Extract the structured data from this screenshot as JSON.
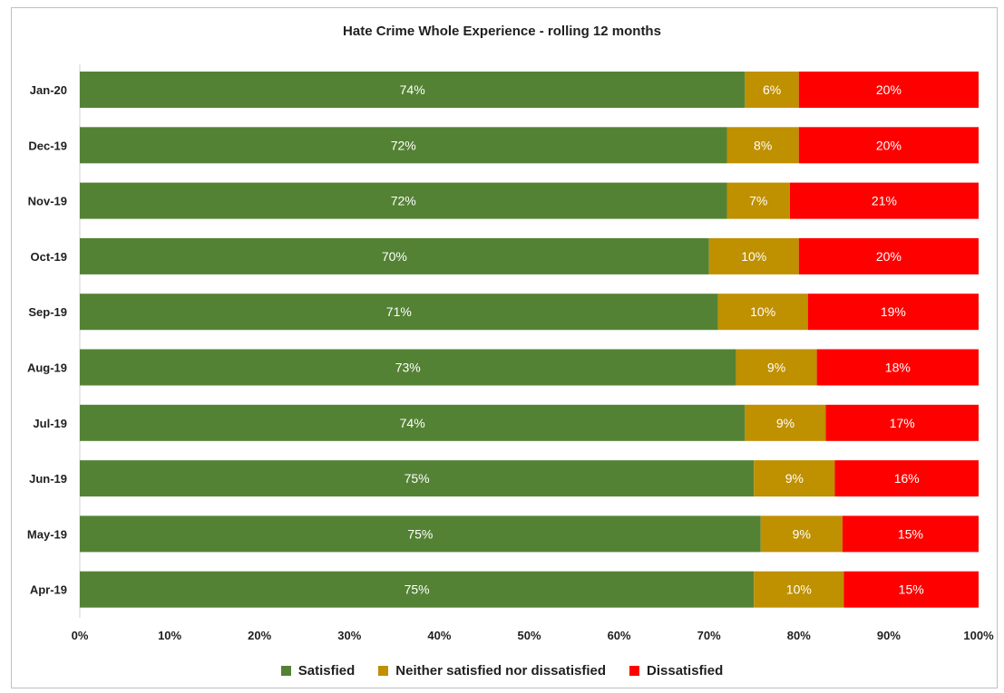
{
  "chart_data": {
    "type": "bar",
    "orientation": "horizontal",
    "stacked": true,
    "title": "Hate Crime Whole Experience - rolling 12 months",
    "categories": [
      "Jan-20",
      "Dec-19",
      "Nov-19",
      "Oct-19",
      "Sep-19",
      "Aug-19",
      "Jul-19",
      "Jun-19",
      "May-19",
      "Apr-19"
    ],
    "series": [
      {
        "name": "Satisfied",
        "color": "#548235",
        "values": [
          74,
          72,
          72,
          70,
          71,
          73,
          74,
          75,
          75,
          75
        ],
        "labels": [
          "74%",
          "72%",
          "72%",
          "70%",
          "71%",
          "73%",
          "74%",
          "75%",
          "75%",
          "75%"
        ]
      },
      {
        "name": "Neither satisfied nor dissatisfied",
        "color": "#bf9000",
        "values": [
          6,
          8,
          7,
          10,
          10,
          9,
          9,
          9,
          9,
          10
        ],
        "labels": [
          "6%",
          "8%",
          "7%",
          "10%",
          "10%",
          "9%",
          "9%",
          "9%",
          "9%",
          "10%"
        ]
      },
      {
        "name": "Dissatisfied",
        "color": "#ff0000",
        "values": [
          20,
          20,
          21,
          20,
          19,
          18,
          17,
          16,
          15,
          15
        ],
        "labels": [
          "20%",
          "20%",
          "21%",
          "20%",
          "19%",
          "18%",
          "17%",
          "16%",
          "15%",
          "15%"
        ]
      }
    ],
    "x_ticks": [
      "0%",
      "10%",
      "20%",
      "30%",
      "40%",
      "50%",
      "60%",
      "70%",
      "80%",
      "90%",
      "100%"
    ],
    "xlim": [
      0,
      100
    ],
    "grid": false,
    "legend_position": "bottom"
  }
}
